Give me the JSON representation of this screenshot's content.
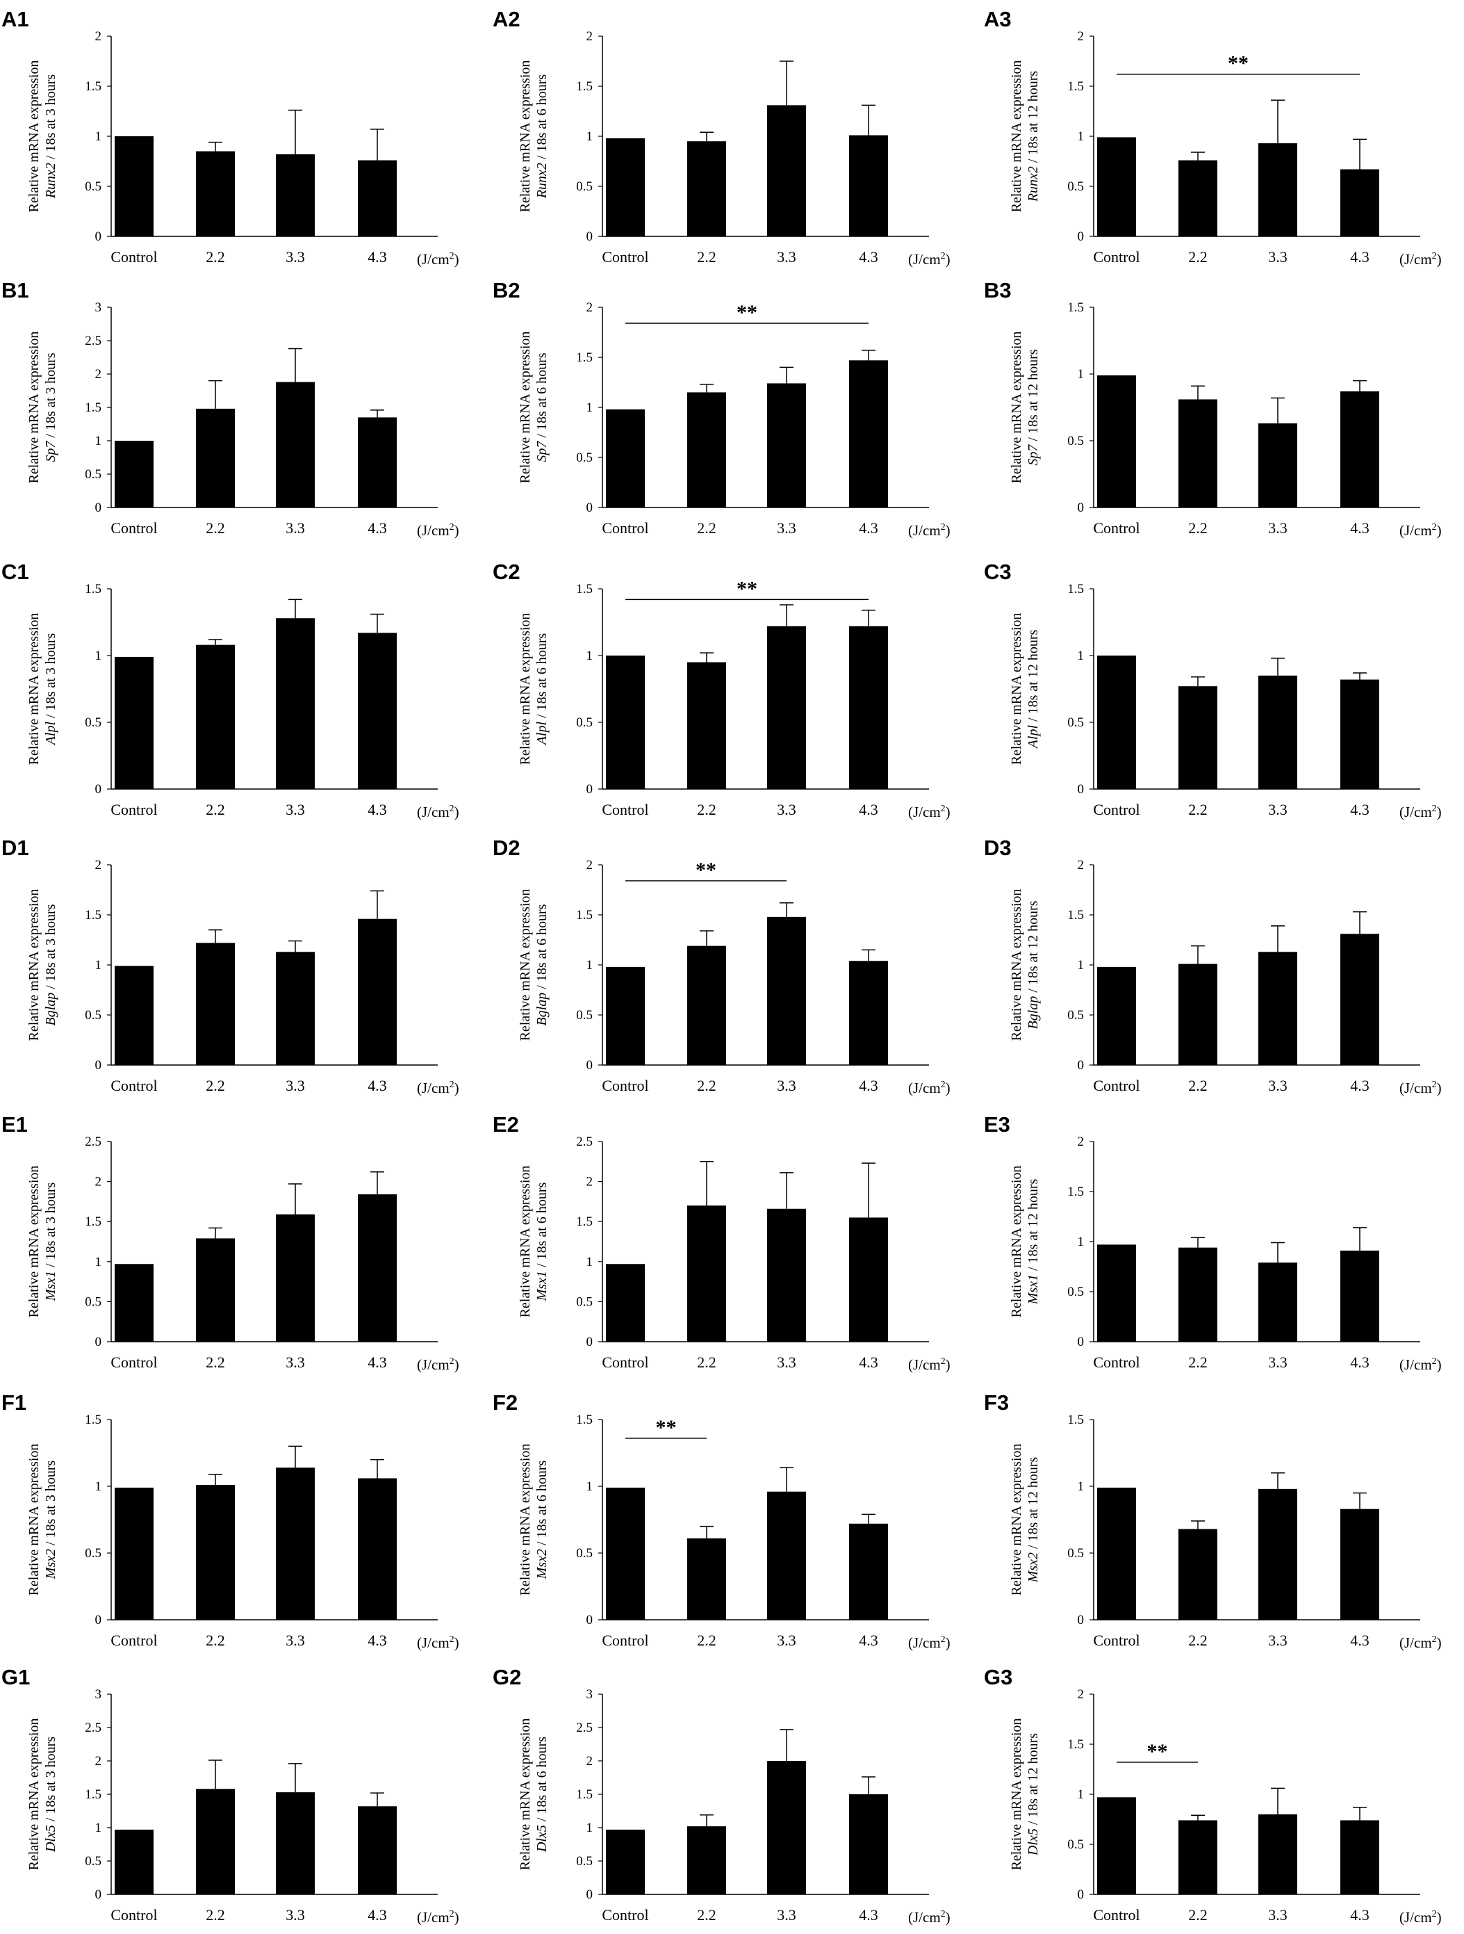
{
  "categories": [
    "Control",
    "2.2",
    "3.3",
    "4.3"
  ],
  "unit_prefix": "(J/cm",
  "unit_sup": "2",
  "unit_suffix": ")",
  "ylabel_top": "Relative mRNA expression",
  "chart_data": [
    {
      "type": "bar",
      "label": "A1",
      "gene": "Runx2",
      "ysuffix": " / 18s at 3 hours",
      "ylim": [
        0,
        2
      ],
      "ticks": [
        "0",
        "0.5",
        "1",
        "1.5",
        "2"
      ],
      "values": [
        1.0,
        0.85,
        0.82,
        0.76
      ],
      "errors": [
        0,
        0.09,
        0.44,
        0.31
      ],
      "sig": null
    },
    {
      "type": "bar",
      "label": "A2",
      "gene": "Runx2",
      "ysuffix": " / 18s at 6 hours",
      "ylim": [
        0,
        2
      ],
      "ticks": [
        "0",
        "0.5",
        "1",
        "1.5",
        "2"
      ],
      "values": [
        0.98,
        0.95,
        1.31,
        1.01
      ],
      "errors": [
        0,
        0.09,
        0.44,
        0.3
      ],
      "sig": null
    },
    {
      "type": "bar",
      "label": "A3",
      "gene": "Runx2",
      "ysuffix": " / 18s at 12 hours",
      "ylim": [
        0,
        2
      ],
      "ticks": [
        "0",
        "0.5",
        "1",
        "1.5",
        "2"
      ],
      "values": [
        0.99,
        0.76,
        0.93,
        0.67
      ],
      "errors": [
        0,
        0.08,
        0.43,
        0.3
      ],
      "sig": {
        "from": 0,
        "to": 3,
        "y": 1.62,
        "text": "**"
      }
    },
    {
      "type": "bar",
      "label": "B1",
      "gene": "Sp7",
      "ysuffix": " / 18s at 3 hours",
      "ylim": [
        0,
        3
      ],
      "ticks": [
        "0",
        "0.5",
        "1",
        "1.5",
        "2",
        "2.5",
        "3"
      ],
      "values": [
        1.0,
        1.48,
        1.88,
        1.35
      ],
      "errors": [
        0,
        0.42,
        0.5,
        0.11
      ],
      "sig": null
    },
    {
      "type": "bar",
      "label": "B2",
      "gene": "Sp7",
      "ysuffix": " / 18s at 6 hours",
      "ylim": [
        0,
        2
      ],
      "ticks": [
        "0",
        "0.5",
        "1",
        "1.5",
        "2"
      ],
      "values": [
        0.98,
        1.15,
        1.24,
        1.47
      ],
      "errors": [
        0,
        0.08,
        0.16,
        0.1
      ],
      "sig": {
        "from": 0,
        "to": 3,
        "y": 1.84,
        "text": "**"
      }
    },
    {
      "type": "bar",
      "label": "B3",
      "gene": "Sp7",
      "ysuffix": " / 18s at 12 hours",
      "ylim": [
        0,
        1.5
      ],
      "ticks": [
        "0",
        "0.5",
        "1",
        "1.5"
      ],
      "values": [
        0.99,
        0.81,
        0.63,
        0.87
      ],
      "errors": [
        0,
        0.1,
        0.19,
        0.08
      ],
      "sig": null
    },
    {
      "type": "bar",
      "label": "C1",
      "gene": "Alpl",
      "ysuffix": " / 18s at 3 hours",
      "ylim": [
        0,
        1.5
      ],
      "ticks": [
        "0",
        "0.5",
        "1",
        "1.5"
      ],
      "values": [
        0.99,
        1.08,
        1.28,
        1.17
      ],
      "errors": [
        0,
        0.04,
        0.14,
        0.14
      ],
      "sig": null
    },
    {
      "type": "bar",
      "label": "C2",
      "gene": "Alpl",
      "ysuffix": " / 18s at 6 hours",
      "ylim": [
        0,
        1.5
      ],
      "ticks": [
        "0",
        "0.5",
        "1",
        "1.5"
      ],
      "values": [
        1.0,
        0.95,
        1.22,
        1.22
      ],
      "errors": [
        0,
        0.07,
        0.16,
        0.12
      ],
      "sig": {
        "from": 0,
        "to": 3,
        "y": 1.42,
        "text": "**"
      }
    },
    {
      "type": "bar",
      "label": "C3",
      "gene": "Alpl",
      "ysuffix": " / 18s at 12 hours",
      "ylim": [
        0,
        1.5
      ],
      "ticks": [
        "0",
        "0.5",
        "1",
        "1.5"
      ],
      "values": [
        1.0,
        0.77,
        0.85,
        0.82
      ],
      "errors": [
        0,
        0.07,
        0.13,
        0.05
      ],
      "sig": null
    },
    {
      "type": "bar",
      "label": "D1",
      "gene": "Bglap",
      "ysuffix": " / 18s at 3 hours",
      "ylim": [
        0,
        2
      ],
      "ticks": [
        "0",
        "0.5",
        "1",
        "1.5",
        "2"
      ],
      "values": [
        0.99,
        1.22,
        1.13,
        1.46
      ],
      "errors": [
        0,
        0.13,
        0.11,
        0.28
      ],
      "sig": null
    },
    {
      "type": "bar",
      "label": "D2",
      "gene": "Bglap",
      "ysuffix": " / 18s at 6 hours",
      "ylim": [
        0,
        2
      ],
      "ticks": [
        "0",
        "0.5",
        "1",
        "1.5",
        "2"
      ],
      "values": [
        0.98,
        1.19,
        1.48,
        1.04
      ],
      "errors": [
        0,
        0.15,
        0.14,
        0.11
      ],
      "sig": {
        "from": 0,
        "to": 2,
        "y": 1.84,
        "text": "**"
      }
    },
    {
      "type": "bar",
      "label": "D3",
      "gene": "Bglap",
      "ysuffix": " / 18s at 12 hours",
      "ylim": [
        0,
        2
      ],
      "ticks": [
        "0",
        "0.5",
        "1",
        "1.5",
        "2"
      ],
      "values": [
        0.98,
        1.01,
        1.13,
        1.31
      ],
      "errors": [
        0,
        0.18,
        0.26,
        0.22
      ],
      "sig": null
    },
    {
      "type": "bar",
      "label": "E1",
      "gene": "Msx1",
      "ysuffix": " / 18s at 3 hours",
      "ylim": [
        0,
        2.5
      ],
      "ticks": [
        "0",
        "0.5",
        "1",
        "1.5",
        "2",
        "2.5"
      ],
      "values": [
        0.97,
        1.29,
        1.59,
        1.84
      ],
      "errors": [
        0,
        0.13,
        0.38,
        0.28
      ],
      "sig": null
    },
    {
      "type": "bar",
      "label": "E2",
      "gene": "Msx1",
      "ysuffix": " / 18s at 6 hours",
      "ylim": [
        0,
        2.5
      ],
      "ticks": [
        "0",
        "0.5",
        "1",
        "1.5",
        "2",
        "2.5"
      ],
      "values": [
        0.97,
        1.7,
        1.66,
        1.55
      ],
      "errors": [
        0,
        0.55,
        0.45,
        0.68
      ],
      "sig": null
    },
    {
      "type": "bar",
      "label": "E3",
      "gene": "Msx1",
      "ysuffix": " / 18s at 12 hours",
      "ylim": [
        0,
        2
      ],
      "ticks": [
        "0",
        "0.5",
        "1",
        "1.5",
        "2"
      ],
      "values": [
        0.97,
        0.94,
        0.79,
        0.91
      ],
      "errors": [
        0,
        0.1,
        0.2,
        0.23
      ],
      "sig": null
    },
    {
      "type": "bar",
      "label": "F1",
      "gene": "Msx2",
      "ysuffix": " / 18s at 3 hours",
      "ylim": [
        0,
        1.5
      ],
      "ticks": [
        "0",
        "0.5",
        "1",
        "1.5"
      ],
      "values": [
        0.99,
        1.01,
        1.14,
        1.06
      ],
      "errors": [
        0,
        0.08,
        0.16,
        0.14
      ],
      "sig": null
    },
    {
      "type": "bar",
      "label": "F2",
      "gene": "Msx2",
      "ysuffix": " / 18s at 6 hours",
      "ylim": [
        0,
        1.5
      ],
      "ticks": [
        "0",
        "0.5",
        "1",
        "1.5"
      ],
      "values": [
        0.99,
        0.61,
        0.96,
        0.72
      ],
      "errors": [
        0,
        0.09,
        0.18,
        0.07
      ],
      "sig": {
        "from": 0,
        "to": 1,
        "y": 1.36,
        "text": "**"
      }
    },
    {
      "type": "bar",
      "label": "F3",
      "gene": "Msx2",
      "ysuffix": " / 18s at 12 hours",
      "ylim": [
        0,
        1.5
      ],
      "ticks": [
        "0",
        "0.5",
        "1",
        "1.5"
      ],
      "values": [
        0.99,
        0.68,
        0.98,
        0.83
      ],
      "errors": [
        0,
        0.06,
        0.12,
        0.12
      ],
      "sig": null
    },
    {
      "type": "bar",
      "label": "G1",
      "gene": "Dlx5",
      "ysuffix": " / 18s at 3 hours",
      "ylim": [
        0,
        3
      ],
      "ticks": [
        "0",
        "0.5",
        "1",
        "1.5",
        "2",
        "2.5",
        "3"
      ],
      "values": [
        0.97,
        1.58,
        1.53,
        1.32
      ],
      "errors": [
        0,
        0.43,
        0.43,
        0.2
      ],
      "sig": null
    },
    {
      "type": "bar",
      "label": "G2",
      "gene": "Dlx5",
      "ysuffix": " / 18s at 6 hours",
      "ylim": [
        0,
        3
      ],
      "ticks": [
        "0",
        "0.5",
        "1",
        "1.5",
        "2",
        "2.5",
        "3"
      ],
      "values": [
        0.97,
        1.02,
        2.0,
        1.5
      ],
      "errors": [
        0,
        0.17,
        0.47,
        0.26
      ],
      "sig": null
    },
    {
      "type": "bar",
      "label": "G3",
      "gene": "Dlx5",
      "ysuffix": " / 18s at 12 hours",
      "ylim": [
        0,
        2
      ],
      "ticks": [
        "0",
        "0.5",
        "1",
        "1.5",
        "2"
      ],
      "values": [
        0.97,
        0.74,
        0.8,
        0.74
      ],
      "errors": [
        0,
        0.05,
        0.26,
        0.13
      ],
      "sig": {
        "from": 0,
        "to": 1,
        "y": 1.32,
        "text": "**"
      }
    }
  ]
}
